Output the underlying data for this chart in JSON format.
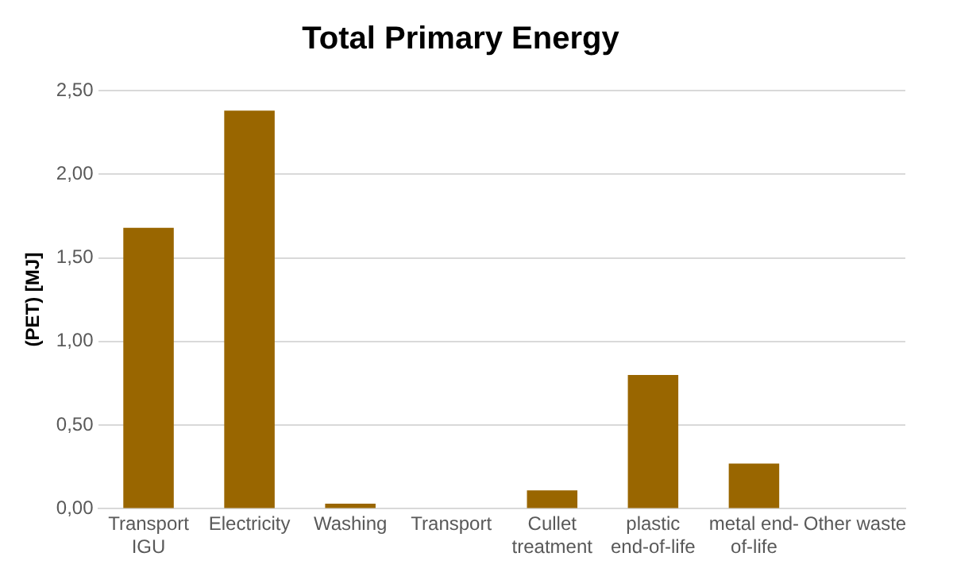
{
  "chart_data": {
    "type": "bar",
    "title": "Total Primary Energy",
    "ylabel": "(PET) [MJ]",
    "categories": [
      "Transport IGU",
      "Electricity",
      "Washing",
      "Transport",
      "Cullet treatment",
      "plastic end-of-life",
      "metal end-of-life",
      "Other waste"
    ],
    "values": [
      1.68,
      2.38,
      0.03,
      0,
      0.11,
      0.8,
      0.27,
      0
    ],
    "color": "#996600",
    "ylim": [
      0,
      2.5
    ],
    "yticks": [
      {
        "value": 0,
        "label": "0,00"
      },
      {
        "value": 0.5,
        "label": "0,50"
      },
      {
        "value": 1,
        "label": "1,00"
      },
      {
        "value": 1.5,
        "label": "1,50"
      },
      {
        "value": 2,
        "label": "2,00"
      },
      {
        "value": 2.5,
        "label": "2,50"
      }
    ],
    "grid": "y",
    "legend": false
  }
}
